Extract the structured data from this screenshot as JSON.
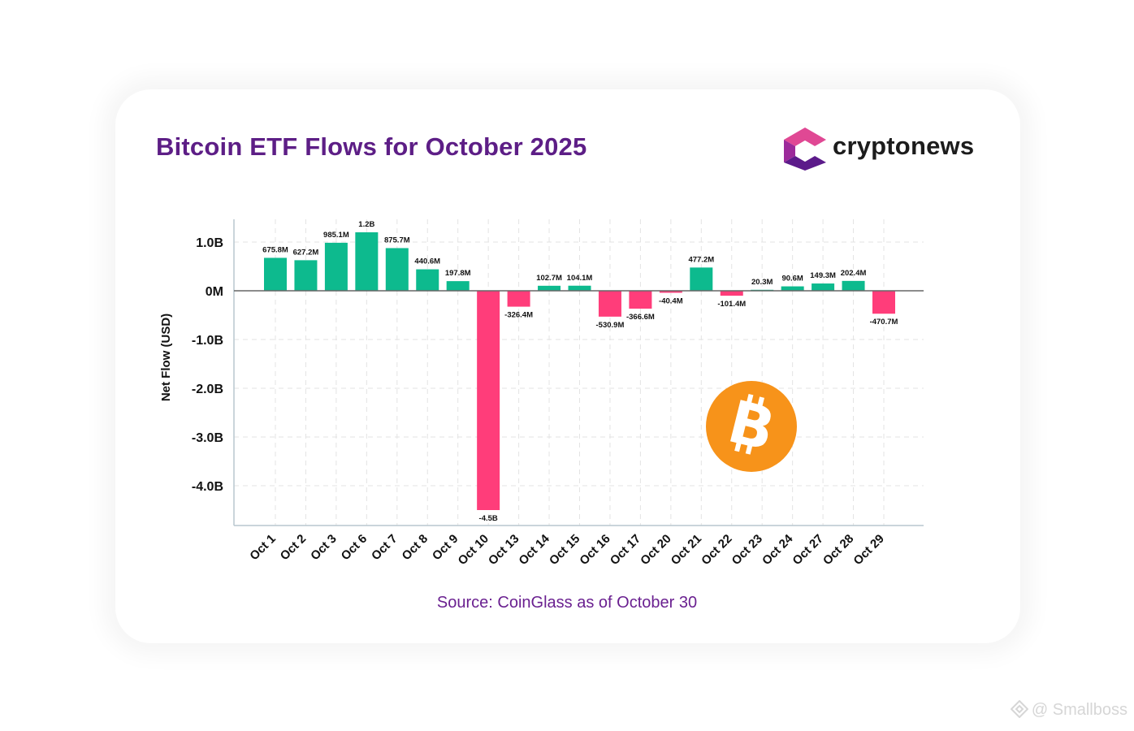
{
  "chart_data": {
    "type": "bar",
    "title": "Bitcoin ETF Flows for October 2025",
    "source": "Source: CoinGlass as of October 30",
    "xlabel": "",
    "ylabel": "Net Flow (USD)",
    "ylim": [
      -4.8,
      1.5
    ],
    "yticks": [
      1.0,
      0,
      -1.0,
      -2.0,
      -3.0,
      -4.0
    ],
    "ytick_labels": [
      "1.0B",
      "0M",
      "-1.0B",
      "-2.0B",
      "-3.0B",
      "-4.0B"
    ],
    "grid": true,
    "categories": [
      "Oct 1",
      "Oct 2",
      "Oct 3",
      "Oct 6",
      "Oct 7",
      "Oct 8",
      "Oct 9",
      "Oct 10",
      "Oct 13",
      "Oct 14",
      "Oct 15",
      "Oct 16",
      "Oct 17",
      "Oct 20",
      "Oct 21",
      "Oct 22",
      "Oct 23",
      "Oct 24",
      "Oct 27",
      "Oct 28",
      "Oct 29"
    ],
    "values": [
      0.6758,
      0.6272,
      0.9851,
      1.2,
      0.8757,
      0.4406,
      0.1978,
      -4.5,
      -0.3264,
      0.1027,
      0.1041,
      -0.5309,
      -0.3666,
      -0.0404,
      0.4772,
      -0.1014,
      0.0203,
      0.0906,
      0.1493,
      0.2024,
      -0.4707
    ],
    "value_labels": [
      "675.8M",
      "627.2M",
      "985.1M",
      "1.2B",
      "875.7M",
      "440.6M",
      "197.8M",
      "-4.5B",
      "-326.4M",
      "102.7M",
      "104.1M",
      "-530.9M",
      "-366.6M",
      "-40.4M",
      "477.2M",
      "-101.4M",
      "20.3M",
      "90.6M",
      "149.3M",
      "202.4M",
      "-470.7M"
    ],
    "colors": {
      "positive": "#0dba8e",
      "negative": "#ff3d7a",
      "bitcoin": "#f7931a"
    }
  },
  "brand": {
    "name": "cryptonews"
  },
  "watermark": {
    "text": "@ Smallboss"
  },
  "icons": {
    "bitcoin": "bitcoin-icon",
    "logo": "cryptonews-logo-icon",
    "watermark": "diamond-logo-icon"
  }
}
